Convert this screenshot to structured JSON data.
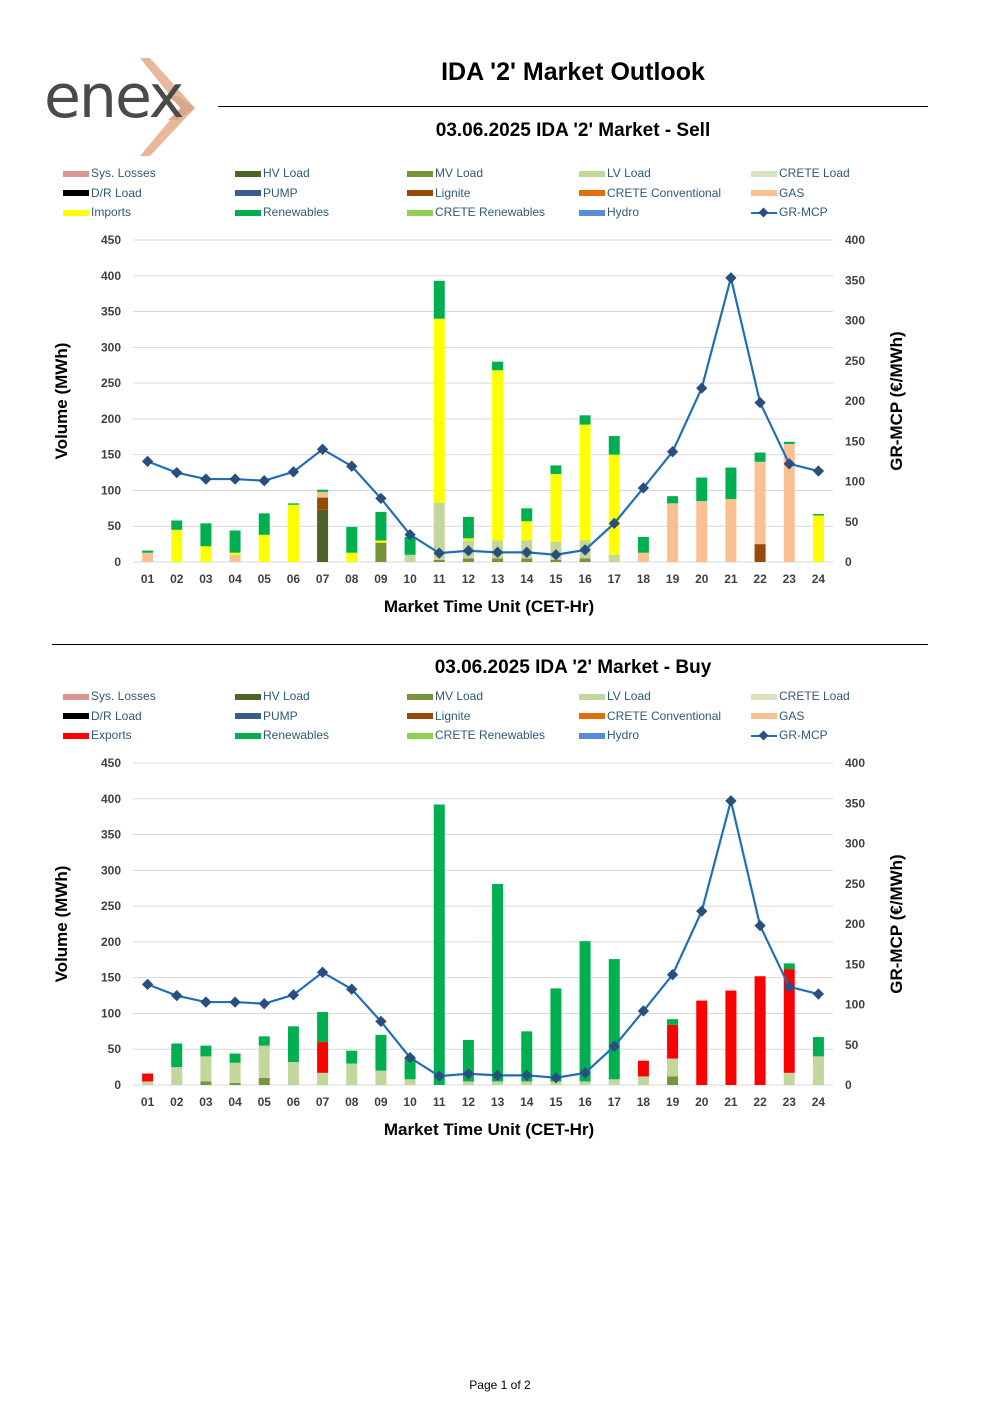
{
  "page": {
    "title": "IDA '2' Market Outlook",
    "footer": "Page 1 of 2",
    "brand": "enex"
  },
  "colors": {
    "Sys. Losses": "#d99594",
    "HV Load": "#4f6228",
    "MV Load": "#77933c",
    "LV Load": "#c3d69b",
    "CRETE Load": "#d7e4bd",
    "D/R Load": "#000000",
    "PUMP": "#385d8a",
    "Lignite": "#984807",
    "CRETE Conventional": "#e46c0a",
    "GAS": "#fac090",
    "Imports": "#ffff00",
    "Exports": "#ff0000",
    "Renewables": "#00b050",
    "CRETE Renewables": "#92d050",
    "Hydro": "#558ed5",
    "GR-MCP": "#1f6fb8",
    "marker": "#2a4f7d"
  },
  "chart_data": [
    {
      "type": "bar",
      "id": "sell",
      "title": "03.06.2025  IDA '2' Market - Sell",
      "xlabel": "Market Time Unit (CET-Hr)",
      "ylabel": "Volume (MWh)",
      "y2label": "GR-MCP (€/MWh)",
      "ylim": [
        0,
        450
      ],
      "yticks": [
        0,
        50,
        100,
        150,
        200,
        250,
        300,
        350,
        400,
        450
      ],
      "y2lim": [
        0,
        400
      ],
      "y2ticks": [
        0,
        50,
        100,
        150,
        200,
        250,
        300,
        350,
        400
      ],
      "categories": [
        "01",
        "02",
        "03",
        "04",
        "05",
        "06",
        "07",
        "08",
        "09",
        "10",
        "11",
        "12",
        "13",
        "14",
        "15",
        "16",
        "17",
        "18",
        "19",
        "20",
        "21",
        "22",
        "23",
        "24"
      ],
      "legend": [
        "Sys. Losses",
        "HV Load",
        "MV Load",
        "LV Load",
        "CRETE Load",
        "D/R Load",
        "PUMP",
        "Lignite",
        "CRETE Conventional",
        "GAS",
        "Imports",
        "Renewables",
        "CRETE Renewables",
        "Hydro",
        "GR-MCP"
      ],
      "series": [
        {
          "name": "HV Load",
          "values": [
            0,
            0,
            0,
            0,
            0,
            0,
            73,
            0,
            0,
            0,
            0,
            0,
            0,
            0,
            0,
            0,
            0,
            0,
            0,
            0,
            0,
            0,
            0,
            0
          ]
        },
        {
          "name": "MV Load",
          "values": [
            0,
            0,
            0,
            0,
            0,
            0,
            0,
            0,
            27,
            0,
            3,
            5,
            5,
            5,
            3,
            5,
            0,
            0,
            0,
            0,
            0,
            0,
            0,
            0
          ]
        },
        {
          "name": "LV Load",
          "values": [
            0,
            0,
            0,
            0,
            0,
            0,
            0,
            0,
            0,
            10,
            80,
            25,
            25,
            25,
            25,
            25,
            10,
            0,
            0,
            0,
            0,
            0,
            0,
            0
          ]
        },
        {
          "name": "Lignite",
          "values": [
            0,
            0,
            0,
            0,
            0,
            0,
            17,
            0,
            0,
            0,
            0,
            0,
            0,
            0,
            0,
            0,
            0,
            0,
            0,
            0,
            0,
            25,
            0,
            0
          ]
        },
        {
          "name": "GAS",
          "values": [
            13,
            0,
            0,
            10,
            0,
            0,
            8,
            0,
            0,
            0,
            0,
            0,
            0,
            0,
            0,
            0,
            0,
            13,
            82,
            85,
            88,
            115,
            165,
            0
          ]
        },
        {
          "name": "Imports",
          "values": [
            0,
            45,
            22,
            3,
            38,
            80,
            0,
            13,
            3,
            0,
            257,
            3,
            238,
            27,
            95,
            162,
            140,
            0,
            0,
            0,
            0,
            0,
            0,
            65
          ]
        },
        {
          "name": "Renewables",
          "values": [
            3,
            13,
            32,
            31,
            30,
            2,
            3,
            36,
            40,
            25,
            53,
            30,
            12,
            18,
            12,
            13,
            26,
            22,
            10,
            33,
            44,
            13,
            3,
            2
          ]
        }
      ],
      "line": {
        "name": "GR-MCP",
        "values": [
          125,
          111,
          103,
          103,
          101,
          112,
          140,
          119,
          79,
          34,
          11,
          14,
          12,
          12,
          9,
          15,
          48,
          92,
          137,
          216,
          353,
          198,
          122,
          113
        ]
      }
    },
    {
      "type": "bar",
      "id": "buy",
      "title": "03.06.2025  IDA '2' Market - Buy",
      "xlabel": "Market Time Unit (CET-Hr)",
      "ylabel": "Volume (MWh)",
      "y2label": "GR-MCP (€/MWh)",
      "ylim": [
        0,
        450
      ],
      "yticks": [
        0,
        50,
        100,
        150,
        200,
        250,
        300,
        350,
        400,
        450
      ],
      "y2lim": [
        0,
        400
      ],
      "y2ticks": [
        0,
        50,
        100,
        150,
        200,
        250,
        300,
        350,
        400
      ],
      "categories": [
        "01",
        "02",
        "03",
        "04",
        "05",
        "06",
        "07",
        "08",
        "09",
        "10",
        "11",
        "12",
        "13",
        "14",
        "15",
        "16",
        "17",
        "18",
        "19",
        "20",
        "21",
        "22",
        "23",
        "24"
      ],
      "legend": [
        "Sys. Losses",
        "HV Load",
        "MV Load",
        "LV Load",
        "CRETE Load",
        "D/R Load",
        "PUMP",
        "Lignite",
        "CRETE Conventional",
        "GAS",
        "Exports",
        "Renewables",
        "CRETE Renewables",
        "Hydro",
        "GR-MCP"
      ],
      "series": [
        {
          "name": "MV Load",
          "values": [
            0,
            0,
            5,
            3,
            10,
            0,
            0,
            0,
            0,
            0,
            0,
            0,
            0,
            0,
            0,
            0,
            0,
            0,
            12,
            0,
            0,
            0,
            0,
            0
          ]
        },
        {
          "name": "LV Load",
          "values": [
            5,
            25,
            35,
            28,
            45,
            32,
            17,
            30,
            20,
            8,
            0,
            5,
            5,
            5,
            5,
            5,
            8,
            12,
            25,
            0,
            0,
            0,
            17,
            40
          ]
        },
        {
          "name": "Exports",
          "values": [
            11,
            0,
            0,
            0,
            0,
            0,
            43,
            0,
            0,
            0,
            0,
            0,
            0,
            0,
            0,
            0,
            0,
            22,
            47,
            118,
            132,
            152,
            145,
            0
          ]
        },
        {
          "name": "Renewables",
          "values": [
            0,
            33,
            15,
            13,
            13,
            50,
            42,
            18,
            50,
            30,
            392,
            58,
            276,
            70,
            130,
            196,
            168,
            0,
            8,
            0,
            0,
            0,
            8,
            27
          ]
        }
      ],
      "line": {
        "name": "GR-MCP",
        "values": [
          125,
          111,
          103,
          103,
          101,
          112,
          140,
          119,
          79,
          34,
          11,
          14,
          12,
          12,
          9,
          15,
          48,
          92,
          137,
          216,
          353,
          198,
          122,
          113
        ]
      }
    }
  ]
}
